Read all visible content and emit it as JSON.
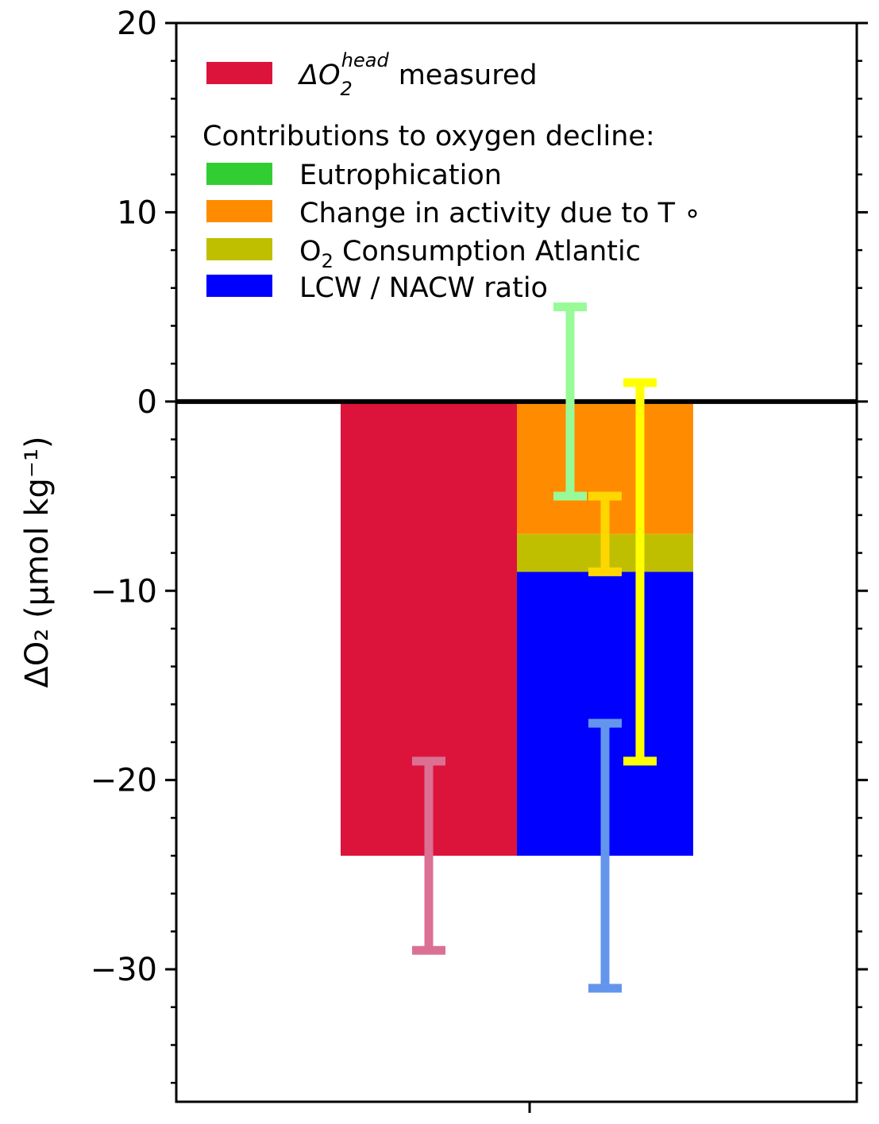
{
  "chart_data": {
    "type": "bar",
    "ylabel": "ΔO₂ (μmol kg⁻¹)",
    "ylim": [
      -37,
      20
    ],
    "y_ticks": [
      20,
      10,
      0,
      -10,
      -20,
      -30
    ],
    "y_tick_labels": [
      "20",
      "10",
      "0",
      "−10",
      "−20",
      "−30"
    ],
    "zero_line": true,
    "legend": {
      "location": "top-left",
      "measured_label": "measured",
      "measured_symbol": "ΔO",
      "measured_sub": "2",
      "measured_sup": "head",
      "heading": "Contributions to oxygen decline:",
      "entries": [
        {
          "label": "Eutrophication",
          "color": "#32cd32"
        },
        {
          "label": "Change in activity due to T ∘",
          "color": "#ff8c00"
        },
        {
          "label_prefix": "O",
          "label_sub": "2",
          "label_suffix": " Consumption Atlantic",
          "color": "#bfbf00"
        },
        {
          "label": "LCW / NACW ratio",
          "color": "#0000ff"
        }
      ]
    },
    "measured": {
      "name": "ΔO2 head measured",
      "value": -24,
      "color": "#dc143c"
    },
    "contributions": [
      {
        "name": "Eutrophication",
        "value": 0,
        "color": "#32cd32"
      },
      {
        "name": "Change in activity due to T",
        "value": -7,
        "color": "#ff8c00"
      },
      {
        "name": "O2 Consumption Atlantic",
        "value": -2,
        "color": "#bfbf00"
      },
      {
        "name": "LCW / NACW ratio",
        "value": -15,
        "color": "#0000ff"
      }
    ],
    "error_bars": [
      {
        "name": "measured",
        "low": -29,
        "high": -19,
        "color": "#db7093"
      },
      {
        "name": "Eutrophication",
        "low": -5,
        "high": 5,
        "color": "#98fb98"
      },
      {
        "name": "Change in activity due to T",
        "low": -9,
        "high": -5,
        "color": "#ffd700"
      },
      {
        "name": "O2 Consumption Atlantic",
        "low": -19,
        "high": 1,
        "color": "#ffff00"
      },
      {
        "name": "LCW / NACW ratio",
        "low": -31,
        "high": -17,
        "color": "#6495ed"
      }
    ]
  }
}
